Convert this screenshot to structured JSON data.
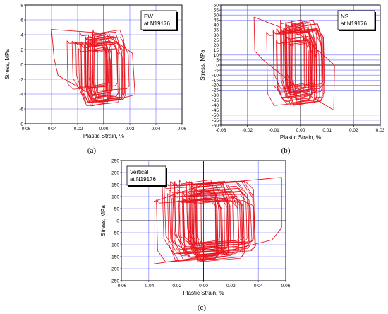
{
  "chart_data": [
    {
      "type": "line",
      "panel_label": "(a)",
      "legend": [
        "EW",
        "at N19176"
      ],
      "xlabel": "Plastic Strain, %",
      "ylabel": "Stress, MPa",
      "xlim": [
        -0.06,
        0.06
      ],
      "ylim": [
        -8,
        8
      ],
      "xticks": [
        "-0.06",
        "-0.04",
        "-0.02",
        "0.00",
        "0.02",
        "0.04",
        "0.06"
      ],
      "yticks": [
        "-8",
        "-6",
        "-4",
        "-2",
        "0",
        "2",
        "4",
        "6",
        "8"
      ],
      "grid": true,
      "series_color": "#e8141e",
      "hysteresis": {
        "cycles": 26,
        "strain_range": [
          -0.04,
          0.024
        ],
        "stress_range": [
          -5.9,
          4.9
        ],
        "extreme_loop": [
          [
            -0.04,
            4.7
          ],
          [
            -0.038,
            0.8
          ],
          [
            -0.035,
            -1.5
          ],
          [
            -0.01,
            -4.0
          ],
          [
            0.015,
            -4.5
          ],
          [
            0.024,
            -4.1
          ],
          [
            0.022,
            1.5
          ],
          [
            0.0,
            4.2
          ],
          [
            -0.04,
            4.7
          ]
        ]
      }
    },
    {
      "type": "line",
      "panel_label": "(b)",
      "legend": [
        "NS",
        "at N19176"
      ],
      "xlabel": "Plastic Strain, %",
      "ylabel": "Stress, MPa",
      "xlim": [
        -0.03,
        0.03
      ],
      "ylim": [
        -60,
        60
      ],
      "xticks": [
        "-0.03",
        "-0.02",
        "-0.01",
        "0.00",
        "0.01",
        "0.02",
        "0.03"
      ],
      "yticks": [
        "-60",
        "-55",
        "-50",
        "-45",
        "-40",
        "-35",
        "-30",
        "-25",
        "-20",
        "-15",
        "-10",
        "-5",
        "0",
        "5",
        "10",
        "15",
        "20",
        "25",
        "30",
        "35",
        "40",
        "45",
        "50",
        "55",
        "60"
      ],
      "grid": true,
      "series_color": "#e8141e",
      "hysteresis": {
        "cycles": 30,
        "strain_range": [
          -0.0175,
          0.013
        ],
        "stress_range": [
          -45,
          48
        ],
        "extreme_loop": [
          [
            -0.0175,
            48
          ],
          [
            -0.0172,
            14
          ],
          [
            -0.014,
            5
          ],
          [
            0.0,
            -25
          ],
          [
            0.0125,
            -45
          ],
          [
            0.0128,
            0
          ],
          [
            0.0,
            30
          ],
          [
            -0.0175,
            48
          ]
        ]
      }
    },
    {
      "type": "line",
      "panel_label": "(c)",
      "legend": [
        "Vertical",
        "at N19176"
      ],
      "xlabel": "Plastic Strain, %",
      "ylabel": "Stress, MPa",
      "xlim": [
        -0.06,
        0.06
      ],
      "ylim": [
        -250,
        250
      ],
      "xticks": [
        "-0.06",
        "-0.04",
        "-0.02",
        "0.00",
        "0.02",
        "0.04",
        "0.06"
      ],
      "yticks": [
        "-250",
        "-200",
        "-150",
        "-100",
        "-50",
        "0",
        "50",
        "100",
        "150",
        "200",
        "250"
      ],
      "grid": true,
      "series_color": "#e8141e",
      "hysteresis": {
        "cycles": 40,
        "strain_range": [
          -0.036,
          0.057
        ],
        "stress_range": [
          -185,
          180
        ],
        "extreme_loop": [
          [
            -0.036,
            80
          ],
          [
            -0.036,
            -180
          ],
          [
            0.0,
            -150
          ],
          [
            0.05,
            -80
          ],
          [
            0.057,
            -30
          ],
          [
            0.057,
            180
          ],
          [
            0.0,
            150
          ],
          [
            -0.036,
            80
          ]
        ]
      }
    }
  ]
}
